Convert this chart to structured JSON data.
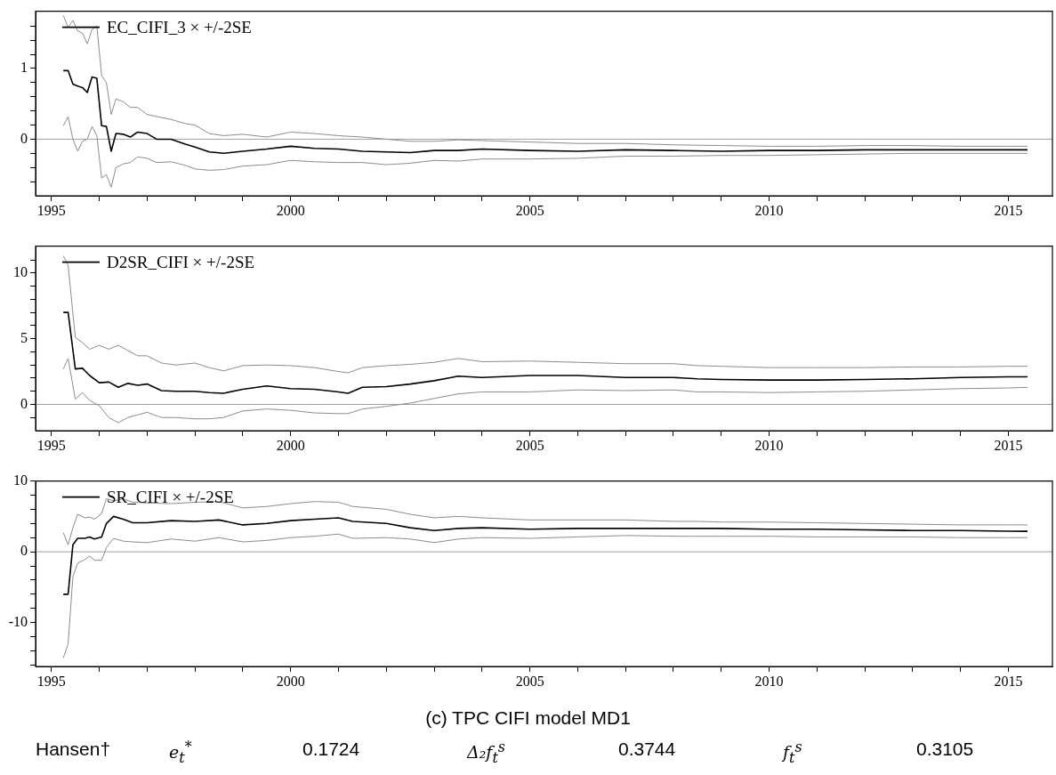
{
  "chart_data": [
    {
      "type": "line",
      "legend": "top left",
      "marker": "none",
      "line_style": "solid",
      "xlim": [
        1994.67,
        2015.92
      ],
      "xticks": [
        1995,
        {
          "value": 1996,
          "label": null
        },
        {
          "value": 1997,
          "label": null
        },
        {
          "value": 1998,
          "label": null
        },
        {
          "value": 1999,
          "label": null
        },
        2000,
        {
          "value": 2001,
          "label": null
        },
        {
          "value": 2002,
          "label": null
        },
        {
          "value": 2003,
          "label": null
        },
        {
          "value": 2004,
          "label": null
        },
        2005,
        {
          "value": 2006,
          "label": null
        },
        {
          "value": 2007,
          "label": null
        },
        {
          "value": 2008,
          "label": null
        },
        {
          "value": 2009,
          "label": null
        },
        2010,
        {
          "value": 2011,
          "label": null
        },
        {
          "value": 2012,
          "label": null
        },
        {
          "value": 2013,
          "label": null
        },
        {
          "value": 2014,
          "label": null
        },
        2015
      ],
      "ylim": [
        -0.8,
        1.81
      ],
      "yticks": [
        {
          "value": -0.6,
          "label": null
        },
        {
          "value": -0.4,
          "label": null
        },
        {
          "value": -0.2,
          "label": null
        },
        0,
        {
          "value": 0.2,
          "label": null
        },
        {
          "value": 0.4,
          "label": null
        },
        {
          "value": 0.6,
          "label": null
        },
        {
          "value": 0.8,
          "label": null
        },
        1,
        {
          "value": 1.2,
          "label": null
        },
        {
          "value": 1.4,
          "label": null
        },
        {
          "value": 1.6,
          "label": null
        }
      ],
      "ref_lines": [
        {
          "axis": "y",
          "value": 0,
          "color": "#a0a0a0"
        }
      ],
      "x": [
        1995.25,
        1995.35,
        1995.45,
        1995.55,
        1995.65,
        1995.75,
        1995.85,
        1995.95,
        1996.05,
        1996.15,
        1996.25,
        1996.35,
        1996.5,
        1996.65,
        1996.8,
        1997.0,
        1997.2,
        1997.5,
        1997.8,
        1998.0,
        1998.3,
        1998.6,
        1999.0,
        1999.5,
        2000.0,
        2000.5,
        2001.0,
        2001.5,
        2002.0,
        2002.5,
        2003.0,
        2003.5,
        2004.0,
        2005,
        2006,
        2007,
        2008,
        2009,
        2010,
        2011,
        2012,
        2013,
        2014,
        2015,
        2015.4
      ],
      "series": [
        {
          "name": "EC_CIFI_3 × +/-2SE",
          "color": "#000000",
          "values": [
            0.97,
            0.97,
            0.78,
            0.75,
            0.73,
            0.66,
            0.88,
            0.86,
            0.19,
            0.18,
            -0.17,
            0.08,
            0.07,
            0.03,
            0.1,
            0.08,
            0.0,
            0.0,
            -0.07,
            -0.11,
            -0.18,
            -0.2,
            -0.17,
            -0.14,
            -0.1,
            -0.13,
            -0.14,
            -0.17,
            -0.18,
            -0.19,
            -0.16,
            -0.16,
            -0.14,
            -0.16,
            -0.17,
            -0.15,
            -0.16,
            -0.17,
            -0.16,
            -0.16,
            -0.15,
            -0.15,
            -0.15,
            -0.15,
            -0.15
          ]
        },
        {
          "color": "#8c8c8c",
          "values": [
            1.75,
            1.58,
            1.68,
            1.53,
            1.5,
            1.35,
            1.55,
            1.6,
            0.9,
            0.8,
            0.35,
            0.57,
            0.53,
            0.45,
            0.45,
            0.35,
            0.32,
            0.28,
            0.22,
            0.2,
            0.08,
            0.05,
            0.07,
            0.03,
            0.1,
            0.08,
            0.05,
            0.03,
            0.0,
            -0.03,
            -0.03,
            -0.01,
            -0.02,
            -0.04,
            -0.06,
            -0.06,
            -0.08,
            -0.09,
            -0.1,
            -0.1,
            -0.09,
            -0.09,
            -0.1,
            -0.1,
            -0.1
          ]
        },
        {
          "color": "#8c8c8c",
          "values": [
            0.19,
            0.32,
            0.0,
            -0.17,
            -0.03,
            0.0,
            0.18,
            0.05,
            -0.55,
            -0.5,
            -0.68,
            -0.4,
            -0.35,
            -0.33,
            -0.25,
            -0.27,
            -0.33,
            -0.32,
            -0.37,
            -0.42,
            -0.44,
            -0.43,
            -0.38,
            -0.36,
            -0.3,
            -0.32,
            -0.33,
            -0.33,
            -0.36,
            -0.34,
            -0.3,
            -0.31,
            -0.28,
            -0.28,
            -0.27,
            -0.24,
            -0.24,
            -0.23,
            -0.23,
            -0.22,
            -0.21,
            -0.2,
            -0.2,
            -0.2,
            -0.2
          ]
        }
      ]
    },
    {
      "type": "line",
      "legend": "top left",
      "marker": "none",
      "line_style": "solid",
      "xlim": [
        1994.67,
        2015.92
      ],
      "xticks": [
        1995,
        {
          "value": 1996,
          "label": null
        },
        {
          "value": 1997,
          "label": null
        },
        {
          "value": 1998,
          "label": null
        },
        {
          "value": 1999,
          "label": null
        },
        2000,
        {
          "value": 2001,
          "label": null
        },
        {
          "value": 2002,
          "label": null
        },
        {
          "value": 2003,
          "label": null
        },
        {
          "value": 2004,
          "label": null
        },
        2005,
        {
          "value": 2006,
          "label": null
        },
        {
          "value": 2007,
          "label": null
        },
        {
          "value": 2008,
          "label": null
        },
        {
          "value": 2009,
          "label": null
        },
        2010,
        {
          "value": 2011,
          "label": null
        },
        {
          "value": 2012,
          "label": null
        },
        {
          "value": 2013,
          "label": null
        },
        {
          "value": 2014,
          "label": null
        },
        2015
      ],
      "ylim": [
        -2.0,
        12.05
      ],
      "yticks": [
        {
          "value": -1,
          "label": null
        },
        0,
        {
          "value": 1,
          "label": null
        },
        {
          "value": 2,
          "label": null
        },
        {
          "value": 3,
          "label": null
        },
        {
          "value": 4,
          "label": null
        },
        5,
        {
          "value": 6,
          "label": null
        },
        {
          "value": 7,
          "label": null
        },
        {
          "value": 8,
          "label": null
        },
        {
          "value": 9,
          "label": null
        },
        10,
        {
          "value": 11,
          "label": null
        }
      ],
      "ref_lines": [
        {
          "axis": "y",
          "value": 0,
          "color": "#a0a0a0"
        }
      ],
      "x": [
        1995.25,
        1995.35,
        1995.5,
        1995.65,
        1995.8,
        1996.0,
        1996.2,
        1996.4,
        1996.6,
        1996.8,
        1997.0,
        1997.3,
        1997.6,
        1998.0,
        1998.3,
        1998.6,
        1999.0,
        1999.5,
        2000.0,
        2000.5,
        2001.0,
        2001.2,
        2001.5,
        2002.0,
        2002.5,
        2003.0,
        2003.5,
        2004.0,
        2005,
        2006,
        2007,
        2008,
        2008.5,
        2009,
        2010,
        2011,
        2012,
        2013,
        2014,
        2015,
        2015.4
      ],
      "series": [
        {
          "name": "D2SR_CIFI × +/-2SE",
          "color": "#000000",
          "values": [
            7.0,
            7.0,
            2.7,
            2.75,
            2.2,
            1.65,
            1.7,
            1.3,
            1.6,
            1.45,
            1.55,
            1.05,
            1.0,
            1.0,
            0.9,
            0.85,
            1.15,
            1.4,
            1.2,
            1.15,
            0.95,
            0.85,
            1.3,
            1.35,
            1.55,
            1.8,
            2.15,
            2.05,
            2.2,
            2.2,
            2.05,
            2.05,
            1.95,
            1.9,
            1.85,
            1.85,
            1.9,
            1.95,
            2.05,
            2.1,
            2.1
          ]
        },
        {
          "color": "#8c8c8c",
          "values": [
            11.3,
            10.6,
            5.1,
            4.7,
            4.2,
            4.5,
            4.2,
            4.5,
            4.1,
            3.7,
            3.7,
            3.15,
            3.0,
            3.15,
            2.8,
            2.55,
            2.95,
            3.0,
            2.95,
            2.8,
            2.5,
            2.4,
            2.8,
            2.95,
            3.05,
            3.2,
            3.5,
            3.25,
            3.3,
            3.2,
            3.1,
            3.1,
            2.95,
            2.9,
            2.8,
            2.8,
            2.8,
            2.85,
            2.85,
            2.9,
            2.9
          ]
        },
        {
          "color": "#8c8c8c",
          "values": [
            2.7,
            3.5,
            0.4,
            0.9,
            0.3,
            -0.1,
            -1.0,
            -1.4,
            -1.0,
            -0.8,
            -0.6,
            -1.0,
            -1.0,
            -1.1,
            -1.1,
            -1.0,
            -0.5,
            -0.35,
            -0.45,
            -0.65,
            -0.7,
            -0.7,
            -0.35,
            -0.15,
            0.1,
            0.45,
            0.8,
            0.95,
            0.95,
            1.1,
            1.05,
            1.1,
            0.95,
            0.95,
            0.9,
            0.95,
            1.0,
            1.1,
            1.2,
            1.25,
            1.3
          ]
        }
      ]
    },
    {
      "type": "line",
      "legend": "top left",
      "marker": "none",
      "line_style": "solid",
      "xlim": [
        1994.67,
        2015.92
      ],
      "xticks": [
        1995,
        {
          "value": 1996,
          "label": null
        },
        {
          "value": 1997,
          "label": null
        },
        {
          "value": 1998,
          "label": null
        },
        {
          "value": 1999,
          "label": null
        },
        2000,
        {
          "value": 2001,
          "label": null
        },
        {
          "value": 2002,
          "label": null
        },
        {
          "value": 2003,
          "label": null
        },
        {
          "value": 2004,
          "label": null
        },
        2005,
        {
          "value": 2006,
          "label": null
        },
        {
          "value": 2007,
          "label": null
        },
        {
          "value": 2008,
          "label": null
        },
        {
          "value": 2009,
          "label": null
        },
        2010,
        {
          "value": 2011,
          "label": null
        },
        {
          "value": 2012,
          "label": null
        },
        {
          "value": 2013,
          "label": null
        },
        {
          "value": 2014,
          "label": null
        },
        2015
      ],
      "ylim": [
        -16.2,
        10
      ],
      "yticks": [
        {
          "value": -16,
          "label": null
        },
        {
          "value": -14,
          "label": null
        },
        {
          "value": -12,
          "label": null
        },
        -10,
        {
          "value": -8,
          "label": null
        },
        {
          "value": -6,
          "label": null
        },
        {
          "value": -4,
          "label": null
        },
        {
          "value": -2,
          "label": null
        },
        0,
        {
          "value": 2,
          "label": null
        },
        {
          "value": 4,
          "label": null
        },
        {
          "value": 6,
          "label": null
        },
        {
          "value": 8,
          "label": null
        },
        10
      ],
      "ref_lines": [
        {
          "axis": "y",
          "value": 0,
          "color": "#a0a0a0"
        }
      ],
      "x": [
        1995.25,
        1995.35,
        1995.45,
        1995.55,
        1995.7,
        1995.8,
        1995.9,
        1996.05,
        1996.15,
        1996.3,
        1996.5,
        1996.7,
        1997.0,
        1997.5,
        1998.0,
        1998.5,
        1999.0,
        1999.5,
        2000.0,
        2000.5,
        2001.0,
        2001.3,
        2002.0,
        2002.5,
        2003.0,
        2003.5,
        2004.0,
        2005,
        2006,
        2007,
        2008,
        2008.5,
        2009,
        2010,
        2011,
        2012,
        2013,
        2014,
        2015,
        2015.4
      ],
      "series": [
        {
          "name": "SR_CIFI × +/-2SE",
          "color": "#000000",
          "values": [
            -6,
            -6,
            1.0,
            1.9,
            1.9,
            2.1,
            1.8,
            2.1,
            4.0,
            5.0,
            4.6,
            4.1,
            4.1,
            4.4,
            4.3,
            4.5,
            3.8,
            4.0,
            4.4,
            4.6,
            4.8,
            4.3,
            4.0,
            3.4,
            3.0,
            3.3,
            3.4,
            3.2,
            3.3,
            3.3,
            3.3,
            3.3,
            3.3,
            3.2,
            3.2,
            3.1,
            3.0,
            3.0,
            2.9,
            2.9
          ]
        },
        {
          "color": "#8c8c8c",
          "values": [
            2.7,
            1.0,
            3.4,
            5.3,
            4.8,
            4.9,
            4.6,
            5.4,
            7.5,
            7.2,
            7.5,
            7.0,
            6.9,
            6.8,
            7.0,
            7.1,
            6.2,
            6.4,
            6.8,
            7.1,
            7.0,
            6.4,
            6.0,
            5.3,
            4.8,
            5.0,
            4.8,
            4.5,
            4.5,
            4.5,
            4.3,
            4.3,
            4.2,
            4.2,
            4.1,
            4.0,
            3.9,
            3.8,
            3.8,
            3.8
          ]
        },
        {
          "color": "#8c8c8c",
          "values": [
            -15,
            -13,
            -3.5,
            -1.6,
            -1.1,
            -0.6,
            -1.2,
            -1.2,
            0.6,
            1.9,
            1.5,
            1.4,
            1.3,
            1.8,
            1.5,
            2.0,
            1.4,
            1.6,
            2.0,
            2.2,
            2.5,
            1.9,
            2.0,
            1.8,
            1.3,
            1.8,
            2.0,
            1.9,
            2.1,
            2.3,
            2.2,
            2.2,
            2.2,
            2.2,
            2.1,
            2.1,
            2.1,
            2.0,
            2.0,
            2.0
          ]
        }
      ],
      "annotations": [
        "(c) TPC CIFI model MD1",
        "Hansen†",
        "e$_{t}$$^{*}$",
        "0.1724",
        "Δ₂f$_{t}$$^{s}$",
        "0.3744",
        "f$_{t}$$^{s}$",
        "0.3105"
      ]
    }
  ]
}
